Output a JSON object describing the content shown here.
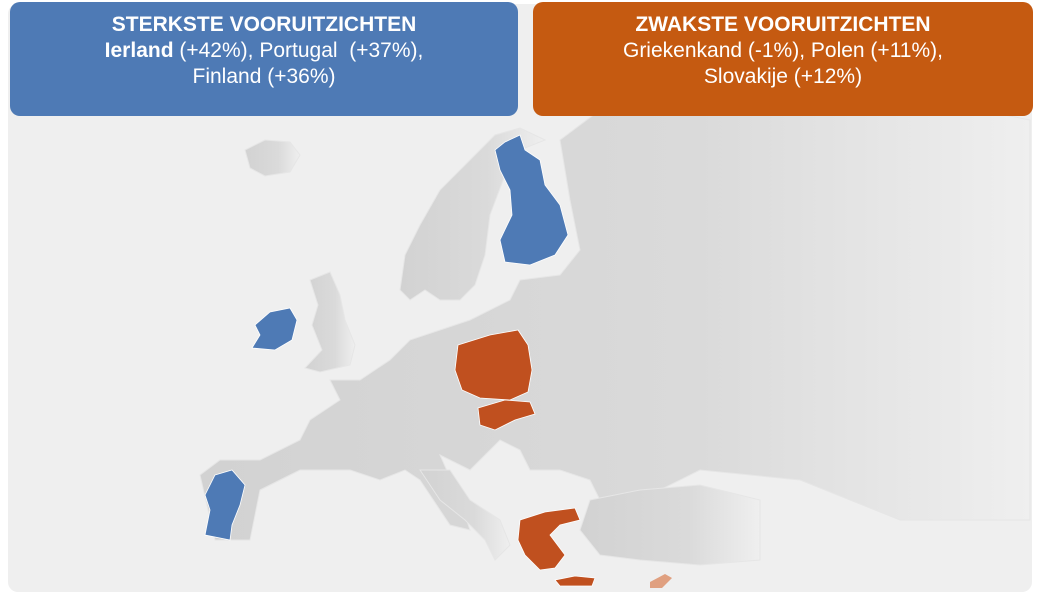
{
  "strongest": {
    "title": "STERKSTE VOORUITZICHTEN",
    "line1_bold": "Ierland",
    "line1_rest": " (+42%), Portugal  (+37%),",
    "line2": "Finland (+36%)"
  },
  "weakest": {
    "title": "ZWAKSTE VOORUITZICHTEN",
    "line1": "Griekenkand (-1%), Polen (+11%),",
    "line2": "Slovakije (+12%)"
  }
}
